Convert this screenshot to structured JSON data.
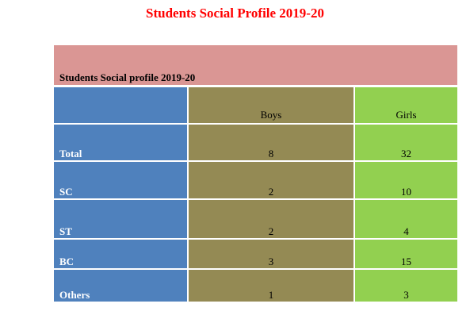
{
  "page": {
    "title": "Students Social Profile 2019-20"
  },
  "table": {
    "caption": "Students Social profile 2019-20",
    "headers": [
      "",
      "Boys",
      "Girls"
    ],
    "rows": [
      {
        "label": "Total",
        "boys": "8",
        "girls": "32"
      },
      {
        "label": "SC",
        "boys": "2",
        "girls": "10"
      },
      {
        "label": "ST",
        "boys": "2",
        "girls": "4"
      },
      {
        "label": "BC",
        "boys": "3",
        "girls": "15"
      },
      {
        "label": "Others",
        "boys": "1",
        "girls": "3"
      }
    ]
  },
  "colors": {
    "title": "#ff0000",
    "banner": "#da9694",
    "label_column": "#4f81bd",
    "boys_column": "#948a54",
    "girls_column": "#92d050"
  }
}
